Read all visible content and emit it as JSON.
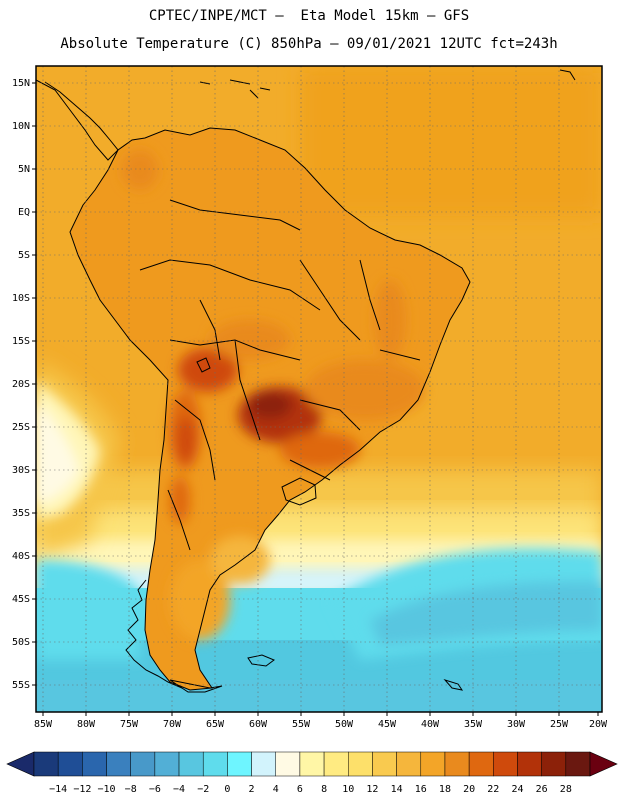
{
  "header": {
    "line1": "CPTEC/INPE/MCT –  Eta Model 15km – GFS",
    "line2": "Absolute Temperature (C) 850hPa – 09/01/2021 12UTC fct=243h"
  },
  "axes": {
    "lat_labels": [
      "15N",
      "10N",
      "5N",
      "EQ",
      "5S",
      "10S",
      "15S",
      "20S",
      "25S",
      "30S",
      "35S",
      "40S",
      "45S",
      "50S",
      "55S"
    ],
    "lon_labels": [
      "85W",
      "80W",
      "75W",
      "70W",
      "65W",
      "60W",
      "55W",
      "50W",
      "45W",
      "40W",
      "35W",
      "30W",
      "25W",
      "20W"
    ]
  },
  "colorbar": {
    "labels": [
      "-14",
      "-12",
      "-10",
      "-8",
      "-6",
      "-4",
      "-2",
      "0",
      "2",
      "4",
      "6",
      "8",
      "10",
      "12",
      "14",
      "16",
      "18",
      "20",
      "22",
      "24",
      "26",
      "28"
    ],
    "colors": [
      "#1a3a7a",
      "#1f4e96",
      "#2a66ad",
      "#3a80be",
      "#4899c9",
      "#52afd6",
      "#58c6e0",
      "#5fdcec",
      "#6ef5ff",
      "#d2f3fc",
      "#fffae4",
      "#fff6a6",
      "#ffeb82",
      "#fde06a",
      "#f9ca4f",
      "#f5b63c",
      "#f3a528",
      "#e98a1e",
      "#df6810",
      "#cf4a0c",
      "#b23209",
      "#8c2109",
      "#6a1810"
    ],
    "left_arrow_color": "#1a2a6a",
    "right_arrow_color": "#6a0010"
  },
  "palette": {
    "ocean_base": "#f2ac2a",
    "land_base": "#ef9a1e"
  }
}
